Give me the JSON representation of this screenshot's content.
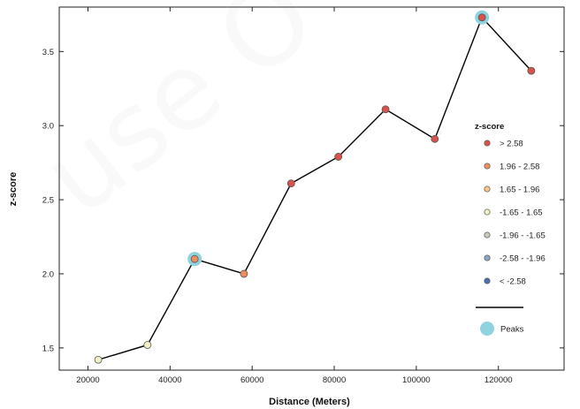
{
  "chart_data": {
    "type": "line",
    "xlabel": "Distance (Meters)",
    "ylabel": "z-score",
    "xlim": [
      13000,
      136000
    ],
    "ylim": [
      1.35,
      3.8
    ],
    "x_ticks": [
      20000,
      40000,
      60000,
      80000,
      100000,
      120000
    ],
    "y_ticks": [
      1.5,
      2.0,
      2.5,
      3.0,
      3.5
    ],
    "grid": false,
    "legend_position": "right",
    "legend_title": "z-score",
    "legend": [
      {
        "label": "> 2.58",
        "color": "#d9534a"
      },
      {
        "label": "1.96 - 2.58",
        "color": "#ef8d5f"
      },
      {
        "label": "1.65 - 1.96",
        "color": "#fbc28d"
      },
      {
        "label": "-1.65 - 1.65",
        "color": "#f2efc5"
      },
      {
        "label": "-1.96 - -1.65",
        "color": "#c8c8bc"
      },
      {
        "label": "-2.58 - -1.96",
        "color": "#8aa6c4"
      },
      {
        "label": "< -2.58",
        "color": "#4a72b0"
      }
    ],
    "peaks_label": "Peaks",
    "peak_color": "#8fd3df",
    "line_color": "#000000",
    "points": [
      {
        "x": 22500,
        "y": 1.42,
        "color": "#f2efc5",
        "peak": false
      },
      {
        "x": 34500,
        "y": 1.52,
        "color": "#f2efc5",
        "peak": false
      },
      {
        "x": 46000,
        "y": 2.1,
        "color": "#ef8d5f",
        "peak": true
      },
      {
        "x": 58000,
        "y": 2.0,
        "color": "#ef8d5f",
        "peak": false
      },
      {
        "x": 69500,
        "y": 2.61,
        "color": "#d9534a",
        "peak": false
      },
      {
        "x": 81000,
        "y": 2.79,
        "color": "#d9534a",
        "peak": false
      },
      {
        "x": 92500,
        "y": 3.11,
        "color": "#d9534a",
        "peak": false
      },
      {
        "x": 104500,
        "y": 2.91,
        "color": "#d9534a",
        "peak": false
      },
      {
        "x": 116000,
        "y": 3.73,
        "color": "#d9534a",
        "peak": true
      },
      {
        "x": 128000,
        "y": 3.37,
        "color": "#d9534a",
        "peak": false
      }
    ]
  }
}
